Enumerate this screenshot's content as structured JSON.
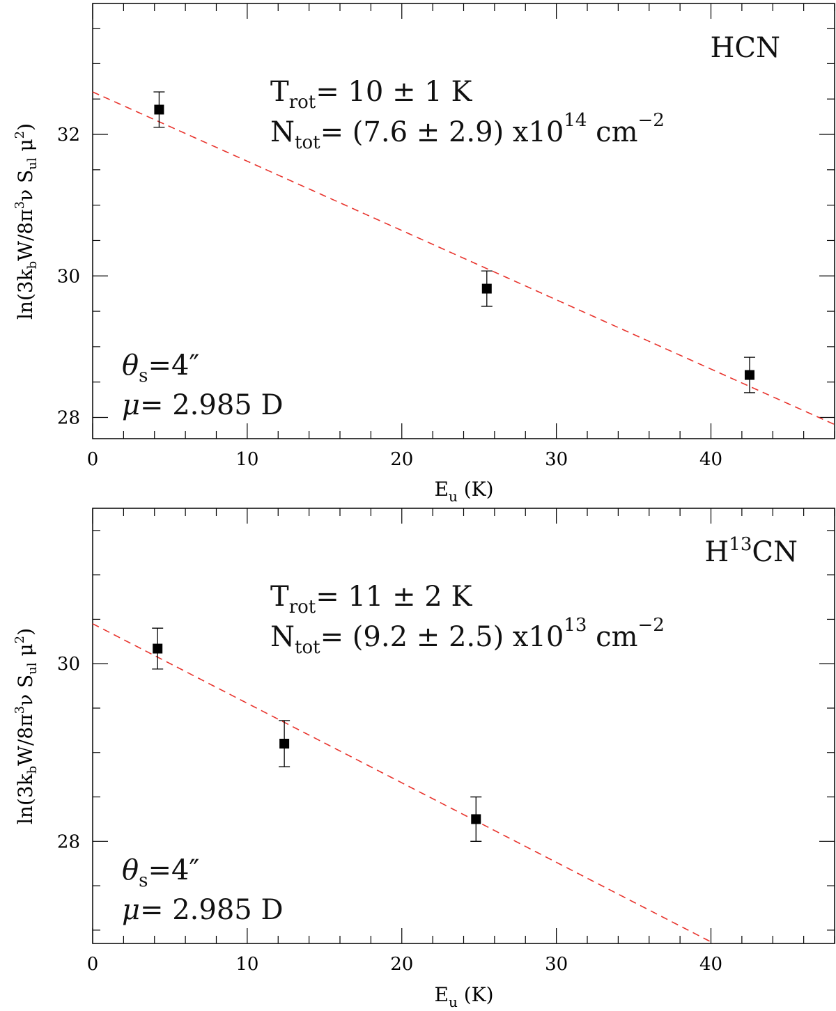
{
  "chart_data": [
    {
      "type": "scatter",
      "molecule": {
        "base": "HCN",
        "prefix": "",
        "iso": "",
        "rest": "HCN"
      },
      "xlabel": {
        "main": "E",
        "sub": "u",
        "rest": " (K)"
      },
      "ylabel": "ln(3k_b W/8π^3 ν S_ul μ^2)",
      "xlim": [
        0,
        48
      ],
      "ylim": [
        27.7,
        33.85
      ],
      "x_ticks": [
        0,
        10,
        20,
        30,
        40
      ],
      "y_ticks": [
        28,
        30,
        32
      ],
      "x_minor_step": 2,
      "y_minor_step": 0.5,
      "points": [
        {
          "x": 4.3,
          "y": 32.35,
          "err": 0.25
        },
        {
          "x": 25.5,
          "y": 29.82,
          "err": 0.25
        },
        {
          "x": 42.5,
          "y": 28.6,
          "err": 0.25
        }
      ],
      "fit_line": {
        "x": [
          0,
          48
        ],
        "y": [
          32.6,
          27.9
        ],
        "color": "#e8332c"
      },
      "annotations": {
        "trot": {
          "label": "T",
          "sub": "rot",
          "text": "= 10 ± 1 K"
        },
        "ntot": {
          "label": "N",
          "sub": "tot",
          "text": "= (7.6 ± 2.9) x10",
          "exp": "14",
          "unit": " cm",
          "unit_exp": "−2"
        },
        "theta": {
          "label": "θ",
          "sub": "s",
          "text": "=4″"
        },
        "mu": {
          "label": "μ",
          "text": "= 2.985 D"
        }
      },
      "y_axis_label_parts": {
        "a": "ln(3k",
        "b": "b",
        "c": "W/8π",
        "d": "3",
        "e": "ν S",
        "f": "ul",
        "g": " μ",
        "h": "2",
        "i": ")"
      }
    },
    {
      "type": "scatter",
      "molecule": {
        "base": "H13CN",
        "prefix": "H",
        "iso": "13",
        "rest": "CN"
      },
      "xlabel": {
        "main": "E",
        "sub": "u",
        "rest": " (K)"
      },
      "ylabel": "ln(3k_b W/8π^3 ν S_ul μ^2)",
      "xlim": [
        0,
        48
      ],
      "ylim": [
        26.85,
        31.75
      ],
      "x_ticks": [
        0,
        10,
        20,
        30,
        40
      ],
      "y_ticks": [
        28,
        30
      ],
      "x_minor_step": 2,
      "y_minor_step": 0.5,
      "points": [
        {
          "x": 4.2,
          "y": 30.17,
          "err": 0.23
        },
        {
          "x": 12.4,
          "y": 29.1,
          "err": 0.26
        },
        {
          "x": 24.8,
          "y": 28.25,
          "err": 0.25
        }
      ],
      "fit_line": {
        "x": [
          0,
          40.2
        ],
        "y": [
          30.45,
          26.85
        ],
        "color": "#e8332c"
      },
      "annotations": {
        "trot": {
          "label": "T",
          "sub": "rot",
          "text": "= 11 ± 2 K"
        },
        "ntot": {
          "label": "N",
          "sub": "tot",
          "text": "= (9.2 ± 2.5) x10",
          "exp": "13",
          "unit": " cm",
          "unit_exp": "−2"
        },
        "theta": {
          "label": "θ",
          "sub": "s",
          "text": "=4″"
        },
        "mu": {
          "label": "μ",
          "text": "= 2.985 D"
        }
      },
      "y_axis_label_parts": {
        "a": "ln(3k",
        "b": "b",
        "c": "W/8π",
        "d": "3",
        "e": "ν S",
        "f": "ul",
        "g": " μ",
        "h": "2",
        "i": ")"
      }
    }
  ]
}
